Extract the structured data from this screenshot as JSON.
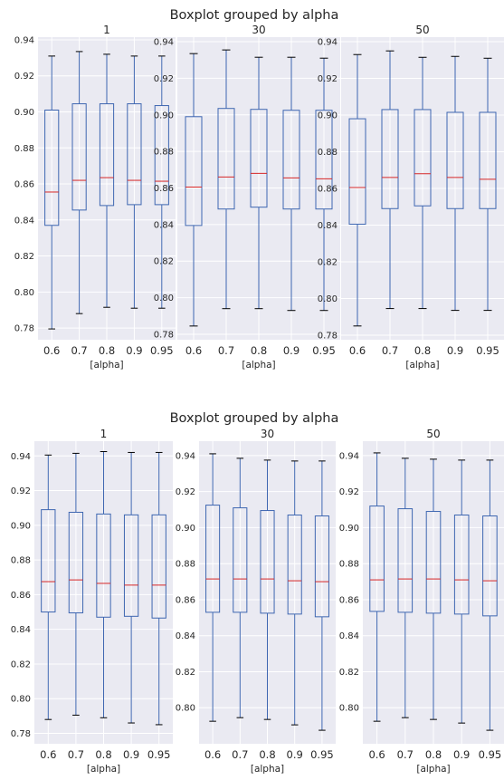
{
  "chart_data": [
    {
      "type": "boxplot",
      "title": "Boxplot grouped by alpha",
      "panels": [
        {
          "title": "1",
          "xlabel": "[alpha]",
          "categories": [
            "0.6",
            "0.7",
            "0.8",
            "0.9",
            "0.95"
          ],
          "yticks": [
            "0.78",
            "0.80",
            "0.82",
            "0.84",
            "0.86",
            "0.88",
            "0.90",
            "0.92",
            "0.94"
          ],
          "ylim": [
            0.7735,
            0.9415
          ],
          "boxes": [
            {
              "whislo": 0.7795,
              "q1": 0.837,
              "med": 0.8555,
              "q3": 0.901,
              "whishi": 0.931
            },
            {
              "whislo": 0.788,
              "q1": 0.8455,
              "med": 0.862,
              "q3": 0.9045,
              "whishi": 0.9335
            },
            {
              "whislo": 0.7915,
              "q1": 0.848,
              "med": 0.8635,
              "q3": 0.9045,
              "whishi": 0.932
            },
            {
              "whislo": 0.791,
              "q1": 0.8485,
              "med": 0.862,
              "q3": 0.9045,
              "whishi": 0.931
            },
            {
              "whislo": 0.791,
              "q1": 0.8485,
              "med": 0.8615,
              "q3": 0.9035,
              "whishi": 0.931
            }
          ]
        },
        {
          "title": "30",
          "xlabel": "[alpha]",
          "categories": [
            "0.6",
            "0.7",
            "0.8",
            "0.9",
            "0.95"
          ],
          "yticks": [
            "0.78",
            "0.80",
            "0.82",
            "0.84",
            "0.86",
            "0.88",
            "0.90",
            "0.92",
            "0.94"
          ],
          "ylim": [
            0.777,
            0.9425
          ],
          "boxes": [
            {
              "whislo": 0.7845,
              "q1": 0.8395,
              "med": 0.8605,
              "q3": 0.899,
              "whishi": 0.9335
            },
            {
              "whislo": 0.794,
              "q1": 0.8485,
              "med": 0.866,
              "q3": 0.9035,
              "whishi": 0.9355
            },
            {
              "whislo": 0.794,
              "q1": 0.8495,
              "med": 0.868,
              "q3": 0.903,
              "whishi": 0.9315
            },
            {
              "whislo": 0.793,
              "q1": 0.8485,
              "med": 0.8655,
              "q3": 0.9025,
              "whishi": 0.9315
            },
            {
              "whislo": 0.793,
              "q1": 0.8485,
              "med": 0.865,
              "q3": 0.9025,
              "whishi": 0.931
            }
          ]
        },
        {
          "title": "50",
          "xlabel": "[alpha]",
          "categories": [
            "0.6",
            "0.7",
            "0.8",
            "0.9",
            "0.95"
          ],
          "yticks": [
            "0.78",
            "0.80",
            "0.82",
            "0.84",
            "0.86",
            "0.88",
            "0.90",
            "0.92",
            "0.94"
          ],
          "ylim": [
            0.7775,
            0.9425
          ],
          "boxes": [
            {
              "whislo": 0.785,
              "q1": 0.8405,
              "med": 0.8605,
              "q3": 0.898,
              "whishi": 0.933
            },
            {
              "whislo": 0.7945,
              "q1": 0.849,
              "med": 0.866,
              "q3": 0.903,
              "whishi": 0.935
            },
            {
              "whislo": 0.7945,
              "q1": 0.8505,
              "med": 0.868,
              "q3": 0.903,
              "whishi": 0.9315
            },
            {
              "whislo": 0.7935,
              "q1": 0.849,
              "med": 0.866,
              "q3": 0.9015,
              "whishi": 0.932
            },
            {
              "whislo": 0.7935,
              "q1": 0.849,
              "med": 0.865,
              "q3": 0.9015,
              "whishi": 0.931
            }
          ]
        }
      ]
    },
    {
      "type": "boxplot",
      "title": "Boxplot grouped by alpha",
      "panels": [
        {
          "title": "1",
          "xlabel": "[alpha]",
          "categories": [
            "0.6",
            "0.7",
            "0.8",
            "0.9",
            "0.95"
          ],
          "yticks": [
            "0.78",
            "0.80",
            "0.82",
            "0.84",
            "0.86",
            "0.88",
            "0.90",
            "0.92",
            "0.94"
          ],
          "ylim": [
            0.774,
            0.9485
          ],
          "boxes": [
            {
              "whislo": 0.788,
              "q1": 0.85,
              "med": 0.8675,
              "q3": 0.909,
              "whishi": 0.9405
            },
            {
              "whislo": 0.7905,
              "q1": 0.8495,
              "med": 0.8685,
              "q3": 0.9075,
              "whishi": 0.9415
            },
            {
              "whislo": 0.789,
              "q1": 0.847,
              "med": 0.8665,
              "q3": 0.9065,
              "whishi": 0.9425
            },
            {
              "whislo": 0.786,
              "q1": 0.8475,
              "med": 0.8655,
              "q3": 0.906,
              "whishi": 0.942
            },
            {
              "whislo": 0.785,
              "q1": 0.8465,
              "med": 0.8655,
              "q3": 0.906,
              "whishi": 0.942
            }
          ]
        },
        {
          "title": "30",
          "xlabel": "[alpha]",
          "categories": [
            "0.6",
            "0.7",
            "0.8",
            "0.9",
            "0.95"
          ],
          "yticks": [
            "0.80",
            "0.82",
            "0.84",
            "0.86",
            "0.88",
            "0.90",
            "0.92",
            "0.94"
          ],
          "ylim": [
            0.78,
            0.948
          ],
          "boxes": [
            {
              "whislo": 0.7925,
              "q1": 0.853,
              "med": 0.8715,
              "q3": 0.9125,
              "whishi": 0.941
            },
            {
              "whislo": 0.7945,
              "q1": 0.853,
              "med": 0.8715,
              "q3": 0.911,
              "whishi": 0.9385
            },
            {
              "whislo": 0.7935,
              "q1": 0.8525,
              "med": 0.8715,
              "q3": 0.9095,
              "whishi": 0.9375
            },
            {
              "whislo": 0.7905,
              "q1": 0.852,
              "med": 0.8705,
              "q3": 0.907,
              "whishi": 0.937
            },
            {
              "whislo": 0.7875,
              "q1": 0.8505,
              "med": 0.87,
              "q3": 0.9065,
              "whishi": 0.937
            }
          ]
        },
        {
          "title": "50",
          "xlabel": "[alpha]",
          "categories": [
            "0.6",
            "0.7",
            "0.8",
            "0.9",
            "0.95"
          ],
          "yticks": [
            "0.80",
            "0.82",
            "0.84",
            "0.86",
            "0.88",
            "0.90",
            "0.92",
            "0.94"
          ],
          "ylim": [
            0.78,
            0.948
          ],
          "boxes": [
            {
              "whislo": 0.7925,
              "q1": 0.8535,
              "med": 0.871,
              "q3": 0.912,
              "whishi": 0.9415
            },
            {
              "whislo": 0.7945,
              "q1": 0.853,
              "med": 0.8715,
              "q3": 0.9105,
              "whishi": 0.9385
            },
            {
              "whislo": 0.7935,
              "q1": 0.8525,
              "med": 0.8715,
              "q3": 0.909,
              "whishi": 0.938
            },
            {
              "whislo": 0.7915,
              "q1": 0.852,
              "med": 0.871,
              "q3": 0.907,
              "whishi": 0.9375
            },
            {
              "whislo": 0.7875,
              "q1": 0.851,
              "med": 0.8705,
              "q3": 0.9065,
              "whishi": 0.9375
            }
          ]
        }
      ]
    }
  ],
  "style": {
    "axes_background": "#eaeaf2",
    "grid_color": "#ffffff",
    "box_color": "#3f67b1",
    "median_color": "#d62728",
    "cap_color": "#000000",
    "text_color": "#262626"
  }
}
